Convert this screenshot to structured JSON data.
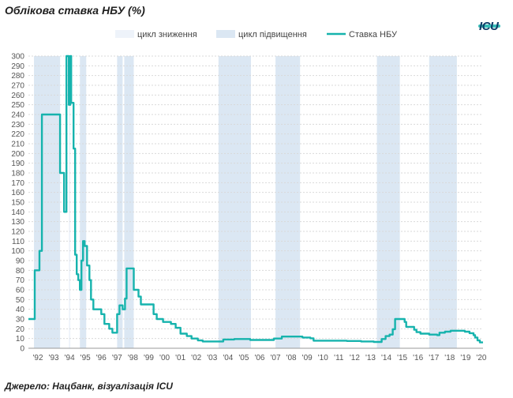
{
  "title": "Облікова ставка НБУ (%)",
  "logo": "ICU",
  "source": "Джерело: Нацбанк, візуалізація ICU",
  "colors": {
    "rate_line": "#16b3ad",
    "easing_band": "#eef3fa",
    "tightening_band": "#dbe7f3",
    "grid": "#d9d9d9"
  },
  "chart_data": {
    "type": "line",
    "title": "Облікова ставка НБУ (%)",
    "xlabel": "",
    "ylabel": "",
    "ylim": [
      0,
      300
    ],
    "y_ticks": [
      0,
      10,
      20,
      30,
      40,
      50,
      60,
      70,
      80,
      90,
      100,
      110,
      120,
      130,
      140,
      150,
      160,
      170,
      180,
      190,
      200,
      210,
      220,
      230,
      240,
      250,
      260,
      270,
      280,
      290,
      300
    ],
    "xlim": [
      1992,
      2020.7
    ],
    "x_ticks": [
      {
        "x": 1992,
        "label": "'92"
      },
      {
        "x": 1993,
        "label": "'93"
      },
      {
        "x": 1994,
        "label": "'94"
      },
      {
        "x": 1995,
        "label": "'95"
      },
      {
        "x": 1996,
        "label": "'96"
      },
      {
        "x": 1997,
        "label": "'97"
      },
      {
        "x": 1998,
        "label": "'98"
      },
      {
        "x": 1999,
        "label": "'99"
      },
      {
        "x": 2000,
        "label": "'00"
      },
      {
        "x": 2001,
        "label": "'01"
      },
      {
        "x": 2002,
        "label": "'02"
      },
      {
        "x": 2003,
        "label": "'03"
      },
      {
        "x": 2004,
        "label": "'04"
      },
      {
        "x": 2005,
        "label": "'05"
      },
      {
        "x": 2006,
        "label": "'06"
      },
      {
        "x": 2007,
        "label": "'07"
      },
      {
        "x": 2008,
        "label": "'08"
      },
      {
        "x": 2009,
        "label": "'09"
      },
      {
        "x": 2010,
        "label": "'10"
      },
      {
        "x": 2011,
        "label": "'11"
      },
      {
        "x": 2012,
        "label": "'12"
      },
      {
        "x": 2013,
        "label": "'13"
      },
      {
        "x": 2014,
        "label": "'14"
      },
      {
        "x": 2015,
        "label": "'15"
      },
      {
        "x": 2016,
        "label": "'16"
      },
      {
        "x": 2017,
        "label": "'17"
      },
      {
        "x": 2018,
        "label": "'18"
      },
      {
        "x": 2019,
        "label": "'19"
      },
      {
        "x": 2020,
        "label": "'20"
      }
    ],
    "grid": true,
    "legend": "top",
    "legend_items": [
      {
        "label": "цикл зниження",
        "kind": "easing"
      },
      {
        "label": "цикл підвищення",
        "kind": "tightening"
      },
      {
        "label": "Ставка НБУ",
        "kind": "line"
      }
    ],
    "easing_periods": [
      [
        1994.55,
        1994.65
      ]
    ],
    "tightening_periods": [
      [
        1992.35,
        1994.0
      ],
      [
        1995.25,
        1995.65
      ],
      [
        1997.6,
        1997.95
      ],
      [
        1998.05,
        1998.65
      ],
      [
        2004.0,
        2006.05
      ],
      [
        2007.6,
        2009.15
      ],
      [
        2014.0,
        2015.45
      ],
      [
        2017.3,
        2019.05
      ]
    ],
    "series": [
      {
        "name": "Ставка НБУ",
        "step": true,
        "points": [
          [
            1992.0,
            30
          ],
          [
            1992.4,
            30
          ],
          [
            1992.4,
            80
          ],
          [
            1992.7,
            80
          ],
          [
            1992.7,
            100
          ],
          [
            1992.85,
            100
          ],
          [
            1992.85,
            240
          ],
          [
            1994.0,
            240
          ],
          [
            1994.0,
            180
          ],
          [
            1994.25,
            180
          ],
          [
            1994.25,
            140
          ],
          [
            1994.4,
            140
          ],
          [
            1994.4,
            300
          ],
          [
            1994.55,
            300
          ],
          [
            1994.55,
            250
          ],
          [
            1994.65,
            250
          ],
          [
            1994.65,
            300
          ],
          [
            1994.7,
            300
          ],
          [
            1994.7,
            252
          ],
          [
            1994.85,
            252
          ],
          [
            1994.85,
            205
          ],
          [
            1994.95,
            205
          ],
          [
            1994.95,
            96
          ],
          [
            1995.05,
            96
          ],
          [
            1995.05,
            76
          ],
          [
            1995.15,
            76
          ],
          [
            1995.15,
            70
          ],
          [
            1995.25,
            70
          ],
          [
            1995.25,
            60
          ],
          [
            1995.35,
            60
          ],
          [
            1995.35,
            90
          ],
          [
            1995.45,
            90
          ],
          [
            1995.45,
            110
          ],
          [
            1995.55,
            110
          ],
          [
            1995.55,
            105
          ],
          [
            1995.7,
            105
          ],
          [
            1995.7,
            85
          ],
          [
            1995.85,
            85
          ],
          [
            1995.85,
            70
          ],
          [
            1995.95,
            70
          ],
          [
            1995.95,
            50
          ],
          [
            1996.1,
            50
          ],
          [
            1996.1,
            40
          ],
          [
            1996.6,
            40
          ],
          [
            1996.6,
            35
          ],
          [
            1996.8,
            35
          ],
          [
            1996.8,
            25
          ],
          [
            1997.1,
            25
          ],
          [
            1997.1,
            20
          ],
          [
            1997.3,
            20
          ],
          [
            1997.3,
            16
          ],
          [
            1997.6,
            16
          ],
          [
            1997.6,
            35
          ],
          [
            1997.75,
            35
          ],
          [
            1997.75,
            44
          ],
          [
            1997.95,
            44
          ],
          [
            1997.95,
            40
          ],
          [
            1998.1,
            40
          ],
          [
            1998.1,
            51
          ],
          [
            1998.2,
            51
          ],
          [
            1998.2,
            82
          ],
          [
            1998.65,
            82
          ],
          [
            1998.65,
            60
          ],
          [
            1998.95,
            60
          ],
          [
            1998.95,
            53
          ],
          [
            1999.1,
            53
          ],
          [
            1999.1,
            45
          ],
          [
            1999.9,
            45
          ],
          [
            1999.9,
            35
          ],
          [
            2000.1,
            35
          ],
          [
            2000.1,
            30
          ],
          [
            2000.5,
            30
          ],
          [
            2000.5,
            27
          ],
          [
            2001.0,
            27
          ],
          [
            2001.0,
            25
          ],
          [
            2001.3,
            25
          ],
          [
            2001.3,
            21
          ],
          [
            2001.6,
            21
          ],
          [
            2001.6,
            15
          ],
          [
            2002.0,
            15
          ],
          [
            2002.0,
            12.5
          ],
          [
            2002.3,
            12.5
          ],
          [
            2002.3,
            10
          ],
          [
            2002.7,
            10
          ],
          [
            2002.7,
            8
          ],
          [
            2003.0,
            8
          ],
          [
            2003.0,
            7
          ],
          [
            2004.3,
            7
          ],
          [
            2004.3,
            9
          ],
          [
            2005.0,
            9
          ],
          [
            2005.0,
            9.5
          ],
          [
            2006.0,
            9.5
          ],
          [
            2006.0,
            8.5
          ],
          [
            2007.5,
            8.5
          ],
          [
            2007.5,
            10
          ],
          [
            2008.0,
            10
          ],
          [
            2008.0,
            12
          ],
          [
            2009.3,
            12
          ],
          [
            2009.3,
            11
          ],
          [
            2009.8,
            11
          ],
          [
            2009.8,
            10.25
          ],
          [
            2010.0,
            10.25
          ],
          [
            2010.0,
            7.75
          ],
          [
            2012.1,
            7.75
          ],
          [
            2012.1,
            7.5
          ],
          [
            2013.0,
            7.5
          ],
          [
            2013.0,
            7
          ],
          [
            2013.8,
            7
          ],
          [
            2013.8,
            6.5
          ],
          [
            2014.3,
            6.5
          ],
          [
            2014.3,
            9.5
          ],
          [
            2014.55,
            9.5
          ],
          [
            2014.55,
            12.5
          ],
          [
            2014.8,
            12.5
          ],
          [
            2014.8,
            14
          ],
          [
            2015.0,
            14
          ],
          [
            2015.0,
            19.5
          ],
          [
            2015.15,
            19.5
          ],
          [
            2015.15,
            30
          ],
          [
            2015.75,
            30
          ],
          [
            2015.75,
            27
          ],
          [
            2015.85,
            27
          ],
          [
            2015.85,
            22
          ],
          [
            2016.35,
            22
          ],
          [
            2016.35,
            19
          ],
          [
            2016.5,
            19
          ],
          [
            2016.5,
            16.5
          ],
          [
            2016.75,
            16.5
          ],
          [
            2016.75,
            15
          ],
          [
            2017.3,
            15
          ],
          [
            2017.3,
            14
          ],
          [
            2017.8,
            14
          ],
          [
            2017.8,
            13.5
          ],
          [
            2017.95,
            13.5
          ],
          [
            2017.95,
            16
          ],
          [
            2018.3,
            16
          ],
          [
            2018.3,
            17
          ],
          [
            2018.65,
            17
          ],
          [
            2018.65,
            18
          ],
          [
            2019.55,
            18
          ],
          [
            2019.55,
            17
          ],
          [
            2019.85,
            17
          ],
          [
            2019.85,
            15.5
          ],
          [
            2020.1,
            15.5
          ],
          [
            2020.1,
            13.5
          ],
          [
            2020.2,
            13.5
          ],
          [
            2020.2,
            11
          ],
          [
            2020.35,
            11
          ],
          [
            2020.35,
            8
          ],
          [
            2020.5,
            8
          ],
          [
            2020.5,
            6
          ],
          [
            2020.7,
            6
          ]
        ]
      }
    ]
  }
}
